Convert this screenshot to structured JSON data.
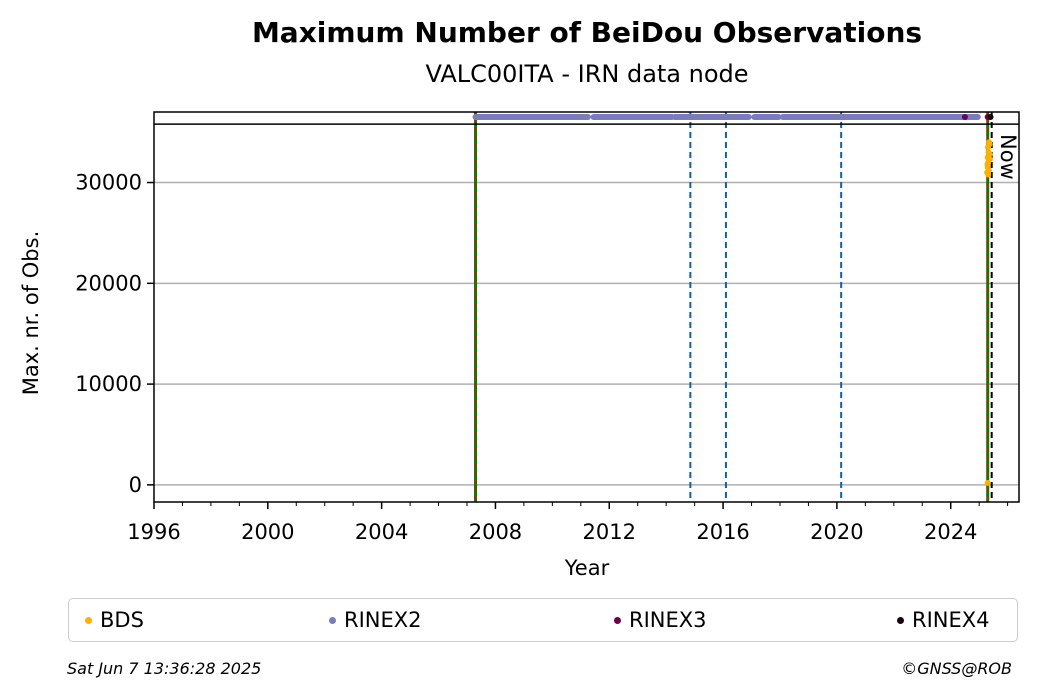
{
  "chart_data": {
    "type": "scatter",
    "title": "Maximum Number of BeiDou Observations",
    "subtitle": "VALC00ITA - IRN data node",
    "xlabel": "Year",
    "ylabel": "Max. nr. of Obs.",
    "xlim": [
      1996,
      2026.4
    ],
    "ylim": [
      -1700,
      37000
    ],
    "x_ticks": [
      "1996",
      "2000",
      "2004",
      "2008",
      "2012",
      "2016",
      "2020",
      "2024"
    ],
    "x_tick_values": [
      1996,
      2000,
      2004,
      2008,
      2012,
      2016,
      2020,
      2024
    ],
    "y_ticks": [
      "0",
      "10000",
      "20000",
      "30000"
    ],
    "y_tick_values": [
      0,
      10000,
      20000,
      30000
    ],
    "grid": "horizontal",
    "top_band_value": 35800,
    "now_line": {
      "x": 2025.44,
      "label": "Now"
    },
    "event_lines_green_red": [
      2007.3,
      2025.3
    ],
    "event_lines_blue_dashed": [
      2014.85,
      2016.1,
      2020.15
    ],
    "series": [
      {
        "name": "BDS",
        "color": "#ffb000",
        "points": [
          [
            2025.28,
            31000
          ],
          [
            2025.3,
            31500
          ],
          [
            2025.32,
            32000
          ],
          [
            2025.3,
            32500
          ],
          [
            2025.33,
            33000
          ],
          [
            2025.31,
            33500
          ],
          [
            2025.35,
            34000
          ],
          [
            2025.34,
            31200
          ],
          [
            2025.37,
            32800
          ],
          [
            2025.36,
            33800
          ],
          [
            2025.29,
            31800
          ],
          [
            2025.38,
            32300
          ],
          [
            2025.32,
            30800
          ],
          [
            2025.3,
            200
          ]
        ]
      },
      {
        "name": "RINEX2",
        "color": "#7b7bbf",
        "segments": [
          [
            2007.3,
            2011.25
          ],
          [
            2011.45,
            2014.2
          ],
          [
            2014.3,
            2016.9
          ],
          [
            2017.1,
            2017.95
          ],
          [
            2018.1,
            2024.95
          ]
        ],
        "y": 36500
      },
      {
        "name": "RINEX3",
        "color": "#6a0050",
        "points": [
          [
            2024.5,
            36500
          ],
          [
            2025.3,
            36500
          ],
          [
            2025.38,
            36500
          ]
        ]
      },
      {
        "name": "RINEX4",
        "color": "#1a0010",
        "points": [
          [
            2025.4,
            36500
          ]
        ]
      }
    ]
  },
  "legend": {
    "items": [
      {
        "label": "BDS",
        "color": "#ffb000"
      },
      {
        "label": "RINEX2",
        "color": "#7b7bbf"
      },
      {
        "label": "RINEX3",
        "color": "#6a0050"
      },
      {
        "label": "RINEX4",
        "color": "#1a0010"
      }
    ]
  },
  "footer": {
    "timestamp": "Sat Jun  7 13:36:28 2025",
    "copyright": "©GNSS@ROB"
  }
}
